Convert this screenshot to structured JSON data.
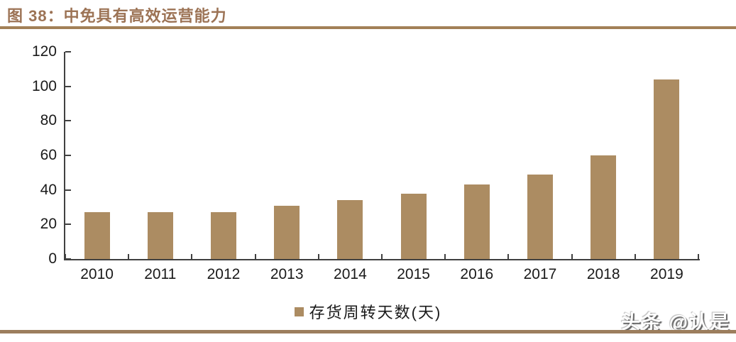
{
  "header": {
    "title": "图 38：中免具有高效运营能力"
  },
  "chart_data": {
    "type": "bar",
    "title": "图 38：中免具有高效运营能力",
    "categories": [
      "2010",
      "2011",
      "2012",
      "2013",
      "2014",
      "2015",
      "2016",
      "2017",
      "2018",
      "2019"
    ],
    "series": [
      {
        "name": "存货周转天数(天)",
        "values": [
          27,
          27,
          27,
          31,
          34,
          38,
          43,
          49,
          60,
          104
        ]
      }
    ],
    "xlabel": "",
    "ylabel": "",
    "ylim": [
      0,
      120
    ],
    "y_ticks": [
      0,
      20,
      40,
      60,
      80,
      100,
      120
    ],
    "grid": false,
    "legend_position": "bottom"
  },
  "legend": {
    "label": "存货周转天数(天)"
  },
  "watermark": {
    "text": "头条 @认是"
  },
  "colors": {
    "bar": "#AC8C62",
    "title": "#9C7355",
    "rule": "#A28057",
    "bottom_rule": "#9C7E5D",
    "axis": "#404040",
    "tick_label": "#1a1a1a"
  }
}
